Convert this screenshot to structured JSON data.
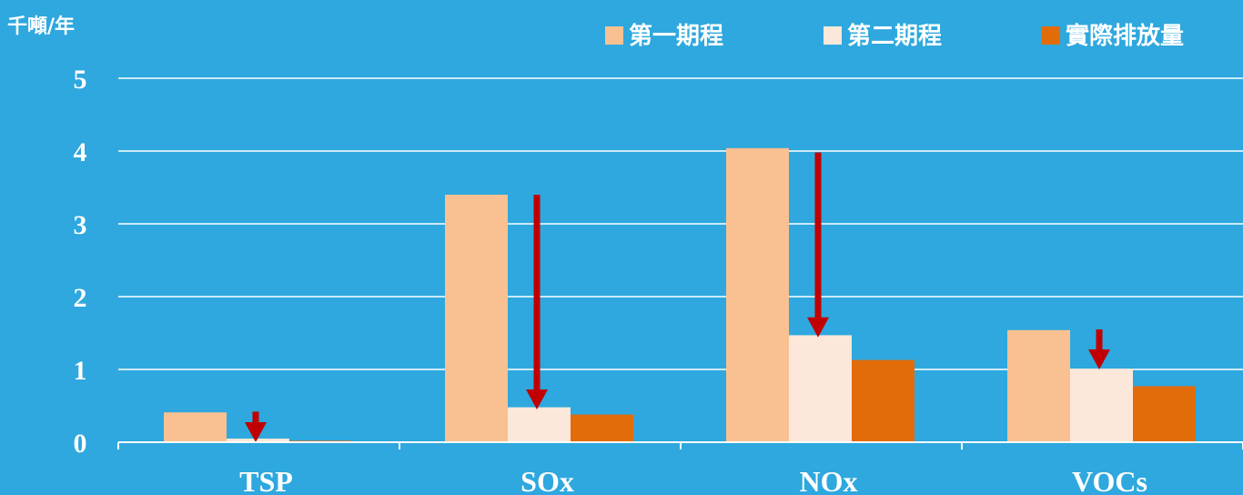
{
  "chart_data": {
    "type": "bar",
    "ylabel": "千噸/年",
    "xlabel": "",
    "ylim": [
      0,
      5
    ],
    "yticks": [
      "0",
      "1",
      "2",
      "3",
      "4",
      "5"
    ],
    "grid": true,
    "legend_position": "top-right",
    "categories": [
      "TSP",
      "SOx",
      "NOx",
      "VOCs"
    ],
    "series": [
      {
        "name": "第一期程",
        "color": "#f9c191",
        "values": [
          0.41,
          3.4,
          4.04,
          1.54
        ]
      },
      {
        "name": "第二期程",
        "color": "#fce8da",
        "values": [
          0.05,
          0.48,
          1.47,
          1.01
        ]
      },
      {
        "name": "實際排放量",
        "color": "#e36c0a",
        "values": [
          0.02,
          0.38,
          1.13,
          0.77
        ]
      }
    ],
    "annotations": {
      "type": "reduction-arrow",
      "color": "#c00000",
      "arrows": [
        {
          "category": "TSP",
          "from": 0.42,
          "to": 0.0
        },
        {
          "category": "SOx",
          "from": 3.4,
          "to": 0.45
        },
        {
          "category": "NOx",
          "from": 3.98,
          "to": 1.44
        },
        {
          "category": "VOCs",
          "from": 1.55,
          "to": 1.0
        }
      ]
    }
  }
}
